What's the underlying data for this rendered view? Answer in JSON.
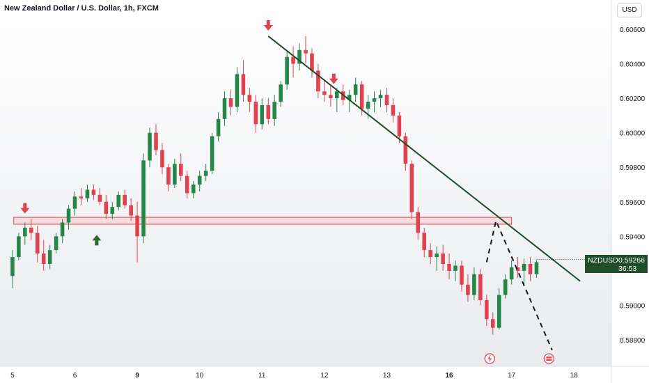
{
  "header": {
    "title": "New Zealand Dollar / U.S. Dollar, 1h, FXCM",
    "currency_button": "USD"
  },
  "price_tag": {
    "symbol": "NZDUSD",
    "value": "0.59266",
    "countdown": "36:53"
  },
  "colors": {
    "up": "#26864a",
    "down": "#e0434f",
    "trendline": "#1f4d28",
    "zone_fill": "#f6c6c9",
    "zone_stroke": "#e0434f",
    "arrow_down": "#e0434f",
    "arrow_up": "#2e6b34",
    "tag_bg": "#1f4d28"
  },
  "chart_data": {
    "type": "candlestick",
    "y_axis": {
      "ticks": [
        "0.60600",
        "0.60400",
        "0.60200",
        "0.60000",
        "0.59800",
        "0.59600",
        "0.59400",
        "0.59000",
        "0.58800"
      ],
      "min": 0.5873,
      "max": 0.6067,
      "side": "right"
    },
    "x_axis": {
      "ticks": [
        "5",
        "6",
        "9",
        "10",
        "11",
        "12",
        "13",
        "16",
        "17",
        "18"
      ]
    },
    "candles": [
      [
        0.5917,
        0.5932,
        0.591,
        0.5928
      ],
      [
        0.5928,
        0.5942,
        0.5926,
        0.594
      ],
      [
        0.594,
        0.5948,
        0.5935,
        0.5945
      ],
      [
        0.5945,
        0.595,
        0.5938,
        0.5942
      ],
      [
        0.5942,
        0.5946,
        0.5925,
        0.593
      ],
      [
        0.593,
        0.5938,
        0.592,
        0.5924
      ],
      [
        0.5924,
        0.5935,
        0.5921,
        0.5932
      ],
      [
        0.5932,
        0.5942,
        0.593,
        0.594
      ],
      [
        0.594,
        0.595,
        0.5936,
        0.5948
      ],
      [
        0.5948,
        0.5958,
        0.5944,
        0.5956
      ],
      [
        0.5956,
        0.5966,
        0.5952,
        0.5963
      ],
      [
        0.5963,
        0.5968,
        0.5958,
        0.5962
      ],
      [
        0.5962,
        0.597,
        0.596,
        0.5967
      ],
      [
        0.5967,
        0.597,
        0.5961,
        0.5964
      ],
      [
        0.5964,
        0.5968,
        0.5958,
        0.596
      ],
      [
        0.596,
        0.5964,
        0.595,
        0.5953
      ],
      [
        0.5953,
        0.596,
        0.595,
        0.5957
      ],
      [
        0.5957,
        0.5966,
        0.5955,
        0.5964
      ],
      [
        0.5964,
        0.5967,
        0.5956,
        0.5958
      ],
      [
        0.5958,
        0.5962,
        0.5949,
        0.5952
      ],
      [
        0.5952,
        0.596,
        0.5925,
        0.594
      ],
      [
        0.594,
        0.5988,
        0.5936,
        0.5984
      ],
      [
        0.5984,
        0.6003,
        0.598,
        0.6
      ],
      [
        0.6,
        0.6005,
        0.5987,
        0.599
      ],
      [
        0.599,
        0.5994,
        0.5976,
        0.598
      ],
      [
        0.598,
        0.5982,
        0.5966,
        0.597
      ],
      [
        0.597,
        0.5985,
        0.5968,
        0.5982
      ],
      [
        0.5982,
        0.5988,
        0.5972,
        0.5975
      ],
      [
        0.5975,
        0.5978,
        0.5962,
        0.5965
      ],
      [
        0.5965,
        0.5972,
        0.5962,
        0.597
      ],
      [
        0.597,
        0.5978,
        0.5966,
        0.5975
      ],
      [
        0.5975,
        0.5982,
        0.5972,
        0.5978
      ],
      [
        0.5978,
        0.6,
        0.5976,
        0.5998
      ],
      [
        0.5998,
        0.6012,
        0.5995,
        0.6008
      ],
      [
        0.6008,
        0.6024,
        0.6004,
        0.602
      ],
      [
        0.602,
        0.6025,
        0.601,
        0.6015
      ],
      [
        0.6015,
        0.6038,
        0.6012,
        0.6034
      ],
      [
        0.6034,
        0.6042,
        0.6018,
        0.6022
      ],
      [
        0.6022,
        0.6026,
        0.6012,
        0.6018
      ],
      [
        0.6018,
        0.6022,
        0.6,
        0.6005
      ],
      [
        0.6005,
        0.602,
        0.6002,
        0.6016
      ],
      [
        0.6016,
        0.602,
        0.6005,
        0.6008
      ],
      [
        0.6008,
        0.6022,
        0.6004,
        0.6018
      ],
      [
        0.6018,
        0.603,
        0.6015,
        0.6028
      ],
      [
        0.6028,
        0.6048,
        0.6025,
        0.6044
      ],
      [
        0.6044,
        0.605,
        0.6032,
        0.604
      ],
      [
        0.604,
        0.6052,
        0.6036,
        0.6048
      ],
      [
        0.6048,
        0.6056,
        0.604,
        0.6046
      ],
      [
        0.6046,
        0.6049,
        0.6032,
        0.6036
      ],
      [
        0.6036,
        0.604,
        0.602,
        0.6024
      ],
      [
        0.6024,
        0.603,
        0.6018,
        0.6022
      ],
      [
        0.6022,
        0.6028,
        0.6015,
        0.602
      ],
      [
        0.602,
        0.6026,
        0.6012,
        0.6024
      ],
      [
        0.6024,
        0.6028,
        0.6016,
        0.6019
      ],
      [
        0.6019,
        0.6025,
        0.6012,
        0.6022
      ],
      [
        0.6022,
        0.6032,
        0.6018,
        0.6028
      ],
      [
        0.6028,
        0.603,
        0.601,
        0.6014
      ],
      [
        0.6014,
        0.6022,
        0.6008,
        0.6018
      ],
      [
        0.6018,
        0.6024,
        0.6012,
        0.602
      ],
      [
        0.602,
        0.6025,
        0.6015,
        0.6022
      ],
      [
        0.6022,
        0.6026,
        0.6012,
        0.6016
      ],
      [
        0.6016,
        0.602,
        0.6006,
        0.601
      ],
      [
        0.601,
        0.6012,
        0.5994,
        0.5998
      ],
      [
        0.5998,
        0.6,
        0.5978,
        0.5982
      ],
      [
        0.5982,
        0.5984,
        0.595,
        0.5954
      ],
      [
        0.5954,
        0.5957,
        0.5938,
        0.5942
      ],
      [
        0.5942,
        0.5945,
        0.5928,
        0.5932
      ],
      [
        0.5932,
        0.5936,
        0.5924,
        0.5928
      ],
      [
        0.5928,
        0.5934,
        0.592,
        0.593
      ],
      [
        0.593,
        0.5935,
        0.592,
        0.5924
      ],
      [
        0.5924,
        0.593,
        0.5915,
        0.592
      ],
      [
        0.592,
        0.5926,
        0.5914,
        0.5923
      ],
      [
        0.5923,
        0.5926,
        0.5908,
        0.5912
      ],
      [
        0.5912,
        0.5918,
        0.5902,
        0.5906
      ],
      [
        0.5906,
        0.5922,
        0.5903,
        0.5918
      ],
      [
        0.5918,
        0.5921,
        0.59,
        0.5903
      ],
      [
        0.5903,
        0.5906,
        0.5888,
        0.5892
      ],
      [
        0.5892,
        0.5896,
        0.5883,
        0.5887
      ],
      [
        0.5887,
        0.591,
        0.5886,
        0.5906
      ],
      [
        0.5906,
        0.5918,
        0.5904,
        0.5915
      ],
      [
        0.5915,
        0.5926,
        0.5912,
        0.5922
      ],
      [
        0.5922,
        0.5928,
        0.5916,
        0.592
      ],
      [
        0.592,
        0.5927,
        0.5912,
        0.5924
      ],
      [
        0.5924,
        0.5928,
        0.5914,
        0.5918
      ],
      [
        0.5918,
        0.5926,
        0.5916,
        0.5925
      ]
    ],
    "x_range": [
      -2,
      96
    ],
    "tick_positions": [
      0,
      10,
      20,
      30,
      40,
      50,
      60,
      70,
      80,
      90
    ],
    "resistance_zone": {
      "from": 0.5947,
      "to": 0.5951
    },
    "trendline": {
      "x1": 41,
      "y1": 0.6056,
      "x2": 91,
      "y2": 0.5914
    },
    "projection": [
      [
        76,
        0.5925
      ],
      [
        77.5,
        0.5949
      ],
      [
        86.5,
        0.5874
      ]
    ],
    "markers": [
      {
        "type": "down",
        "x": 2,
        "y": 0.5952
      },
      {
        "type": "up",
        "x": 13.5,
        "y": 0.5942
      },
      {
        "type": "down",
        "x": 41,
        "y": 0.6058
      },
      {
        "type": "down",
        "x": 51.5,
        "y": 0.6027
      }
    ],
    "events": [
      {
        "x": 76.5
      },
      {
        "x": 86
      }
    ],
    "current_price": 0.59266
  }
}
